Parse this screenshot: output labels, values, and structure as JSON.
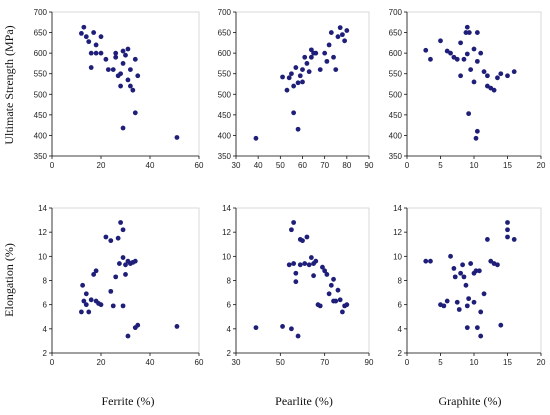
{
  "figure": {
    "ylabels": [
      "Ultimate Strength (MPa)",
      "Elongation (%)"
    ],
    "xlabels": [
      "Ferrite (%)",
      "Pearlite (%)",
      "Graphite (%)"
    ]
  },
  "chart_data": [
    {
      "type": "scatter",
      "row": 0,
      "col": 0,
      "xlabel": "",
      "ylabel": "Ultimate Strength (MPa)",
      "xlim": [
        0,
        60
      ],
      "ylim": [
        350,
        700
      ],
      "xticks": [
        0,
        20,
        40,
        60
      ],
      "yticks": [
        350,
        400,
        450,
        500,
        550,
        600,
        650,
        700
      ],
      "grid": false,
      "marker_color": "#1f1f7a",
      "points": [
        [
          12,
          648
        ],
        [
          13,
          663
        ],
        [
          14,
          640
        ],
        [
          15,
          628
        ],
        [
          16,
          600
        ],
        [
          17,
          650
        ],
        [
          16,
          565
        ],
        [
          18,
          620
        ],
        [
          18,
          600
        ],
        [
          20,
          600
        ],
        [
          20,
          640
        ],
        [
          22,
          585
        ],
        [
          23,
          560
        ],
        [
          25,
          560
        ],
        [
          26,
          600
        ],
        [
          26,
          590
        ],
        [
          27,
          545
        ],
        [
          28,
          550
        ],
        [
          28,
          520
        ],
        [
          29,
          605
        ],
        [
          29,
          575
        ],
        [
          30,
          595
        ],
        [
          31,
          535
        ],
        [
          31,
          610
        ],
        [
          32,
          560
        ],
        [
          32,
          520
        ],
        [
          33,
          510
        ],
        [
          34,
          585
        ],
        [
          35,
          545
        ],
        [
          34,
          455
        ],
        [
          29,
          418
        ],
        [
          51,
          395
        ]
      ]
    },
    {
      "type": "scatter",
      "row": 0,
      "col": 1,
      "xlabel": "",
      "ylabel": "",
      "xlim": [
        30,
        90
      ],
      "ylim": [
        350,
        700
      ],
      "xticks": [
        30,
        40,
        50,
        60,
        70,
        80,
        90
      ],
      "yticks": [
        350,
        400,
        450,
        500,
        550,
        600,
        650,
        700
      ],
      "grid": false,
      "marker_color": "#1f1f7a",
      "points": [
        [
          39,
          393
        ],
        [
          51,
          542
        ],
        [
          53,
          510
        ],
        [
          54,
          540
        ],
        [
          55,
          550
        ],
        [
          56,
          520
        ],
        [
          56,
          455
        ],
        [
          57,
          565
        ],
        [
          58,
          528
        ],
        [
          58,
          415
        ],
        [
          59,
          545
        ],
        [
          60,
          560
        ],
        [
          60,
          530
        ],
        [
          61,
          590
        ],
        [
          62,
          575
        ],
        [
          63,
          555
        ],
        [
          64,
          590
        ],
        [
          64,
          608
        ],
        [
          65,
          600
        ],
        [
          66,
          600
        ],
        [
          68,
          560
        ],
        [
          70,
          600
        ],
        [
          71,
          580
        ],
        [
          72,
          620
        ],
        [
          73,
          650
        ],
        [
          74,
          590
        ],
        [
          75,
          560
        ],
        [
          76,
          640
        ],
        [
          77,
          662
        ],
        [
          78,
          645
        ],
        [
          79,
          630
        ],
        [
          80,
          655
        ]
      ]
    },
    {
      "type": "scatter",
      "row": 0,
      "col": 2,
      "xlabel": "",
      "ylabel": "",
      "xlim": [
        0,
        20
      ],
      "ylim": [
        350,
        700
      ],
      "xticks": [
        0,
        5,
        10,
        15,
        20
      ],
      "yticks": [
        350,
        400,
        450,
        500,
        550,
        600,
        650,
        700
      ],
      "grid": false,
      "marker_color": "#1f1f7a",
      "points": [
        [
          2.8,
          607
        ],
        [
          3.5,
          585
        ],
        [
          5,
          630
        ],
        [
          6,
          605
        ],
        [
          6.5,
          600
        ],
        [
          7,
          590
        ],
        [
          7.5,
          585
        ],
        [
          8,
          625
        ],
        [
          8,
          545
        ],
        [
          8.5,
          585
        ],
        [
          8.8,
          650
        ],
        [
          9,
          663
        ],
        [
          9,
          598
        ],
        [
          9.3,
          650
        ],
        [
          9.5,
          560
        ],
        [
          10,
          610
        ],
        [
          10,
          530
        ],
        [
          10.5,
          580
        ],
        [
          10.5,
          650
        ],
        [
          11,
          600
        ],
        [
          11.5,
          555
        ],
        [
          12,
          545
        ],
        [
          12,
          520
        ],
        [
          12.5,
          515
        ],
        [
          13,
          510
        ],
        [
          13.5,
          540
        ],
        [
          14,
          550
        ],
        [
          15,
          545
        ],
        [
          16,
          555
        ],
        [
          9.2,
          453
        ],
        [
          10.5,
          410
        ],
        [
          10.3,
          393
        ]
      ]
    },
    {
      "type": "scatter",
      "row": 1,
      "col": 0,
      "xlabel": "Ferrite (%)",
      "ylabel": "Elongation (%)",
      "xlim": [
        0,
        60
      ],
      "ylim": [
        2,
        14
      ],
      "xticks": [
        0,
        20,
        40,
        60
      ],
      "yticks": [
        2,
        4,
        6,
        8,
        10,
        12,
        14
      ],
      "grid": false,
      "marker_color": "#1f1f7a",
      "points": [
        [
          12,
          5.4
        ],
        [
          12.5,
          7.6
        ],
        [
          13,
          6.3
        ],
        [
          14,
          6.9
        ],
        [
          14,
          6
        ],
        [
          15,
          5.4
        ],
        [
          16,
          6.4
        ],
        [
          17,
          8.5
        ],
        [
          18,
          8.8
        ],
        [
          18,
          6.3
        ],
        [
          19,
          6.1
        ],
        [
          20,
          6
        ],
        [
          22,
          11.6
        ],
        [
          24,
          11.3
        ],
        [
          24,
          7.1
        ],
        [
          25,
          5.9
        ],
        [
          26,
          8.3
        ],
        [
          27,
          11.5
        ],
        [
          27.5,
          9.4
        ],
        [
          28,
          12.8
        ],
        [
          29,
          12.2
        ],
        [
          29,
          9.9
        ],
        [
          29,
          5.9
        ],
        [
          30,
          9.3
        ],
        [
          30,
          8.5
        ],
        [
          31,
          9.6
        ],
        [
          31,
          3.4
        ],
        [
          32,
          9.4
        ],
        [
          33,
          9.5
        ],
        [
          34,
          9.6
        ],
        [
          34,
          4.1
        ],
        [
          35,
          4.3
        ],
        [
          51,
          4.2
        ]
      ]
    },
    {
      "type": "scatter",
      "row": 1,
      "col": 1,
      "xlabel": "Pearlite (%)",
      "ylabel": "",
      "xlim": [
        30,
        90
      ],
      "ylim": [
        2,
        14
      ],
      "xticks": [
        30,
        50,
        70,
        90
      ],
      "yticks": [
        2,
        4,
        6,
        8,
        10,
        12,
        14
      ],
      "grid": false,
      "marker_color": "#1f1f7a",
      "points": [
        [
          39,
          4.1
        ],
        [
          51,
          4.2
        ],
        [
          54,
          9.3
        ],
        [
          55,
          12.2
        ],
        [
          55,
          4
        ],
        [
          56,
          12.8
        ],
        [
          56,
          9.4
        ],
        [
          57,
          8.6
        ],
        [
          57,
          7.9
        ],
        [
          58,
          3.4
        ],
        [
          59,
          11.4
        ],
        [
          59,
          9.3
        ],
        [
          60,
          11.3
        ],
        [
          61,
          9.4
        ],
        [
          62,
          11.6
        ],
        [
          63,
          9.3
        ],
        [
          64,
          9.9
        ],
        [
          65,
          8.4
        ],
        [
          65,
          9.4
        ],
        [
          66,
          9.6
        ],
        [
          67,
          6
        ],
        [
          68,
          5.9
        ],
        [
          69,
          9.1
        ],
        [
          70,
          8.8
        ],
        [
          71,
          8.5
        ],
        [
          72,
          6.9
        ],
        [
          73,
          7.6
        ],
        [
          74,
          6.3
        ],
        [
          74,
          8.1
        ],
        [
          75,
          6.3
        ],
        [
          76,
          7.2
        ],
        [
          77,
          6.4
        ],
        [
          78,
          5.4
        ],
        [
          79,
          5.9
        ],
        [
          80,
          6
        ]
      ]
    },
    {
      "type": "scatter",
      "row": 1,
      "col": 2,
      "xlabel": "Graphite (%)",
      "ylabel": "",
      "xlim": [
        0,
        20
      ],
      "ylim": [
        2,
        14
      ],
      "xticks": [
        0,
        5,
        10,
        15,
        20
      ],
      "yticks": [
        2,
        4,
        6,
        8,
        10,
        12,
        14
      ],
      "grid": false,
      "marker_color": "#1f1f7a",
      "points": [
        [
          2.8,
          9.6
        ],
        [
          3.5,
          9.6
        ],
        [
          5,
          6
        ],
        [
          5.5,
          5.9
        ],
        [
          6,
          6.3
        ],
        [
          6.5,
          10
        ],
        [
          7,
          9
        ],
        [
          7.2,
          8.3
        ],
        [
          7.5,
          6.2
        ],
        [
          7.8,
          5.6
        ],
        [
          8,
          8.6
        ],
        [
          8.3,
          9.3
        ],
        [
          8.5,
          8.3
        ],
        [
          8.8,
          7.6
        ],
        [
          9,
          5.9
        ],
        [
          9,
          4.1
        ],
        [
          9.2,
          6.5
        ],
        [
          9.5,
          9.4
        ],
        [
          10,
          8.6
        ],
        [
          10,
          6.2
        ],
        [
          10.3,
          8.8
        ],
        [
          10.5,
          4.1
        ],
        [
          10.8,
          8.8
        ],
        [
          11,
          5.4
        ],
        [
          11,
          3.4
        ],
        [
          11.5,
          6.9
        ],
        [
          12,
          11.4
        ],
        [
          12.5,
          9.6
        ],
        [
          13,
          9.4
        ],
        [
          13.5,
          9.3
        ],
        [
          14,
          4.3
        ],
        [
          15,
          12.8
        ],
        [
          15,
          12.2
        ],
        [
          15,
          11.6
        ],
        [
          16,
          11.4
        ]
      ]
    }
  ]
}
